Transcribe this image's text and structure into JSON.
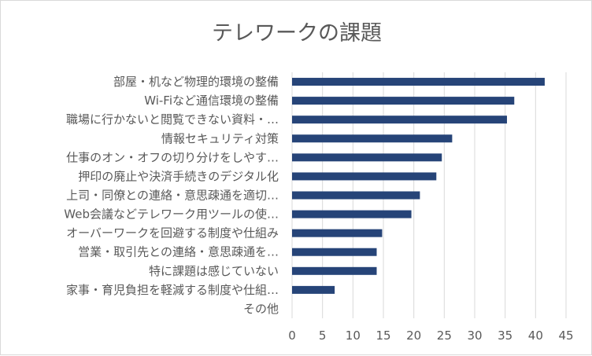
{
  "chart_data": {
    "type": "bar",
    "orientation": "horizontal",
    "title": "テレワークの課題",
    "xlabel": "",
    "ylabel": "",
    "xlim": [
      0,
      45
    ],
    "ticks": [
      "0",
      "5",
      "10",
      "15",
      "20",
      "25",
      "30",
      "35",
      "40",
      "45"
    ],
    "grid": true,
    "legend": "none",
    "bar_color": "#264478",
    "categories": [
      "部屋・机など物理的環境の整備",
      "Wi-Fiなど通信環境の整備",
      "職場に行かないと閲覧できない資料・…",
      "情報セキュリティ対策",
      "仕事のオン・オフの切り分けをしやす…",
      "押印の廃止や決済手続きのデジタル化",
      "上司・同僚との連絡・意思疎通を適切…",
      "Web会議などテレワーク用ツールの使…",
      "オーバーワークを回避する制度や仕組み",
      "営業・取引先との連絡・意思疎通を…",
      "特に課題は感じていない",
      "家事・育児負担を軽減する制度や仕組…",
      "その他"
    ],
    "values": [
      41.5,
      36.5,
      35.3,
      26.3,
      24.6,
      23.7,
      21.0,
      19.6,
      14.8,
      13.9,
      13.9,
      7.0,
      0
    ]
  }
}
